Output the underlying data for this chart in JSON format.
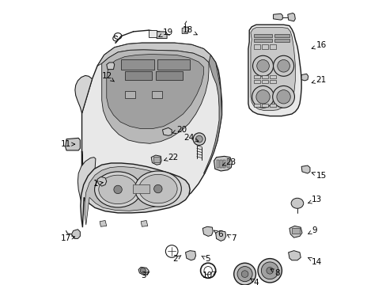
{
  "background_color": "#ffffff",
  "figsize": [
    4.89,
    3.6
  ],
  "dpi": 100,
  "line_color": "#1a1a1a",
  "gray_light": "#e8e8e8",
  "gray_mid": "#c8c8c8",
  "gray_dark": "#a0a0a0",
  "gray_fill": "#d4d4d4",
  "labels": {
    "1": {
      "txt": [
        0.108,
        0.415
      ],
      "arr": [
        0.13,
        0.42
      ]
    },
    "2": {
      "txt": [
        0.34,
        0.195
      ],
      "arr": [
        0.355,
        0.21
      ]
    },
    "3": {
      "txt": [
        0.248,
        0.148
      ],
      "arr": [
        0.263,
        0.162
      ]
    },
    "4": {
      "txt": [
        0.56,
        0.128
      ],
      "arr": [
        0.545,
        0.143
      ]
    },
    "5": {
      "txt": [
        0.418,
        0.195
      ],
      "arr": [
        0.403,
        0.208
      ]
    },
    "6": {
      "txt": [
        0.455,
        0.268
      ],
      "arr": [
        0.443,
        0.28
      ]
    },
    "7": {
      "txt": [
        0.495,
        0.255
      ],
      "arr": [
        0.482,
        0.268
      ]
    },
    "8": {
      "txt": [
        0.622,
        0.155
      ],
      "arr": [
        0.608,
        0.168
      ]
    },
    "9": {
      "txt": [
        0.73,
        0.278
      ],
      "arr": [
        0.718,
        0.268
      ]
    },
    "10": {
      "txt": [
        0.442,
        0.148
      ],
      "arr": [
        0.458,
        0.162
      ]
    },
    "11": {
      "txt": [
        0.028,
        0.53
      ],
      "arr": [
        0.048,
        0.53
      ]
    },
    "12": {
      "txt": [
        0.148,
        0.728
      ],
      "arr": [
        0.155,
        0.712
      ]
    },
    "13": {
      "txt": [
        0.73,
        0.368
      ],
      "arr": [
        0.718,
        0.358
      ]
    },
    "14": {
      "txt": [
        0.73,
        0.188
      ],
      "arr": [
        0.718,
        0.2
      ]
    },
    "15": {
      "txt": [
        0.742,
        0.438
      ],
      "arr": [
        0.728,
        0.448
      ]
    },
    "16": {
      "txt": [
        0.742,
        0.818
      ],
      "arr": [
        0.728,
        0.808
      ]
    },
    "17": {
      "txt": [
        0.028,
        0.255
      ],
      "arr": [
        0.048,
        0.262
      ]
    },
    "18": {
      "txt": [
        0.385,
        0.862
      ],
      "arr": [
        0.398,
        0.848
      ]
    },
    "19": {
      "txt": [
        0.295,
        0.855
      ],
      "arr": [
        0.282,
        0.842
      ]
    },
    "20": {
      "txt": [
        0.335,
        0.572
      ],
      "arr": [
        0.322,
        0.562
      ]
    },
    "21": {
      "txt": [
        0.742,
        0.718
      ],
      "arr": [
        0.728,
        0.708
      ]
    },
    "22": {
      "txt": [
        0.31,
        0.492
      ],
      "arr": [
        0.298,
        0.482
      ]
    },
    "23": {
      "txt": [
        0.48,
        0.478
      ],
      "arr": [
        0.468,
        0.468
      ]
    },
    "24": {
      "txt": [
        0.388,
        0.548
      ],
      "arr": [
        0.402,
        0.538
      ]
    }
  }
}
